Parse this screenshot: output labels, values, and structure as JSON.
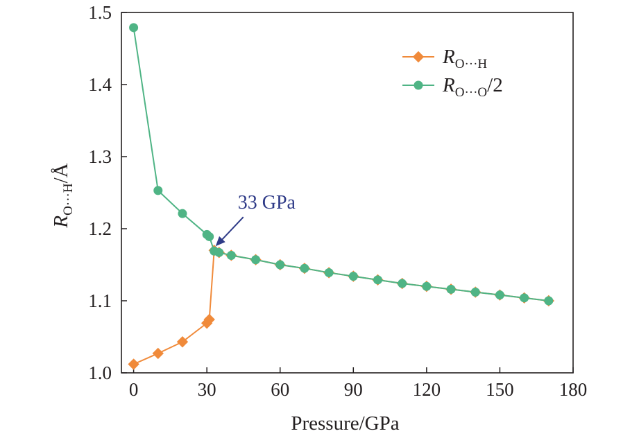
{
  "chart_data": {
    "type": "line",
    "xlabel": "Pressure/GPa",
    "ylabel": {
      "var": "R",
      "sub": "O···H",
      "unit": "/Å"
    },
    "xlim": [
      -5,
      180
    ],
    "ylim": [
      1.0,
      1.5
    ],
    "xticks": [
      0,
      30,
      60,
      90,
      120,
      150,
      180
    ],
    "yticks": [
      1.0,
      1.1,
      1.2,
      1.3,
      1.4,
      1.5
    ],
    "xtick_labels": [
      "0",
      "30",
      "60",
      "90",
      "120",
      "150",
      "180"
    ],
    "ytick_labels": [
      "1.0",
      "1.1",
      "1.2",
      "1.3",
      "1.4",
      "1.5"
    ],
    "legend_position": "top-right",
    "series": [
      {
        "name": "R_O···H",
        "legend": {
          "var": "R",
          "sub": "O···H",
          "suffix": ""
        },
        "color": "#f08a3a",
        "marker": "diamond",
        "x": [
          0,
          10,
          20,
          30,
          31,
          33,
          35,
          40,
          50,
          60,
          70,
          80,
          90,
          100,
          110,
          120,
          130,
          140,
          150,
          160,
          170
        ],
        "y": [
          1.012,
          1.027,
          1.043,
          1.069,
          1.074,
          1.17,
          1.167,
          1.163,
          1.157,
          1.15,
          1.145,
          1.139,
          1.134,
          1.129,
          1.124,
          1.12,
          1.116,
          1.112,
          1.108,
          1.104,
          1.1
        ]
      },
      {
        "name": "R_O···O/2",
        "legend": {
          "var": "R",
          "sub": "O···O",
          "suffix": "/2"
        },
        "color": "#4fb485",
        "marker": "circle",
        "x": [
          0,
          10,
          20,
          30,
          31,
          33,
          35,
          40,
          50,
          60,
          70,
          80,
          90,
          100,
          110,
          120,
          130,
          140,
          150,
          160,
          170
        ],
        "y": [
          1.479,
          1.253,
          1.221,
          1.192,
          1.189,
          1.169,
          1.167,
          1.163,
          1.157,
          1.15,
          1.145,
          1.139,
          1.134,
          1.129,
          1.124,
          1.12,
          1.116,
          1.112,
          1.108,
          1.104,
          1.1
        ]
      }
    ],
    "annotations": [
      {
        "text": "33 GPa",
        "point": [
          33,
          1.17
        ],
        "color": "#2e3a87"
      }
    ]
  }
}
